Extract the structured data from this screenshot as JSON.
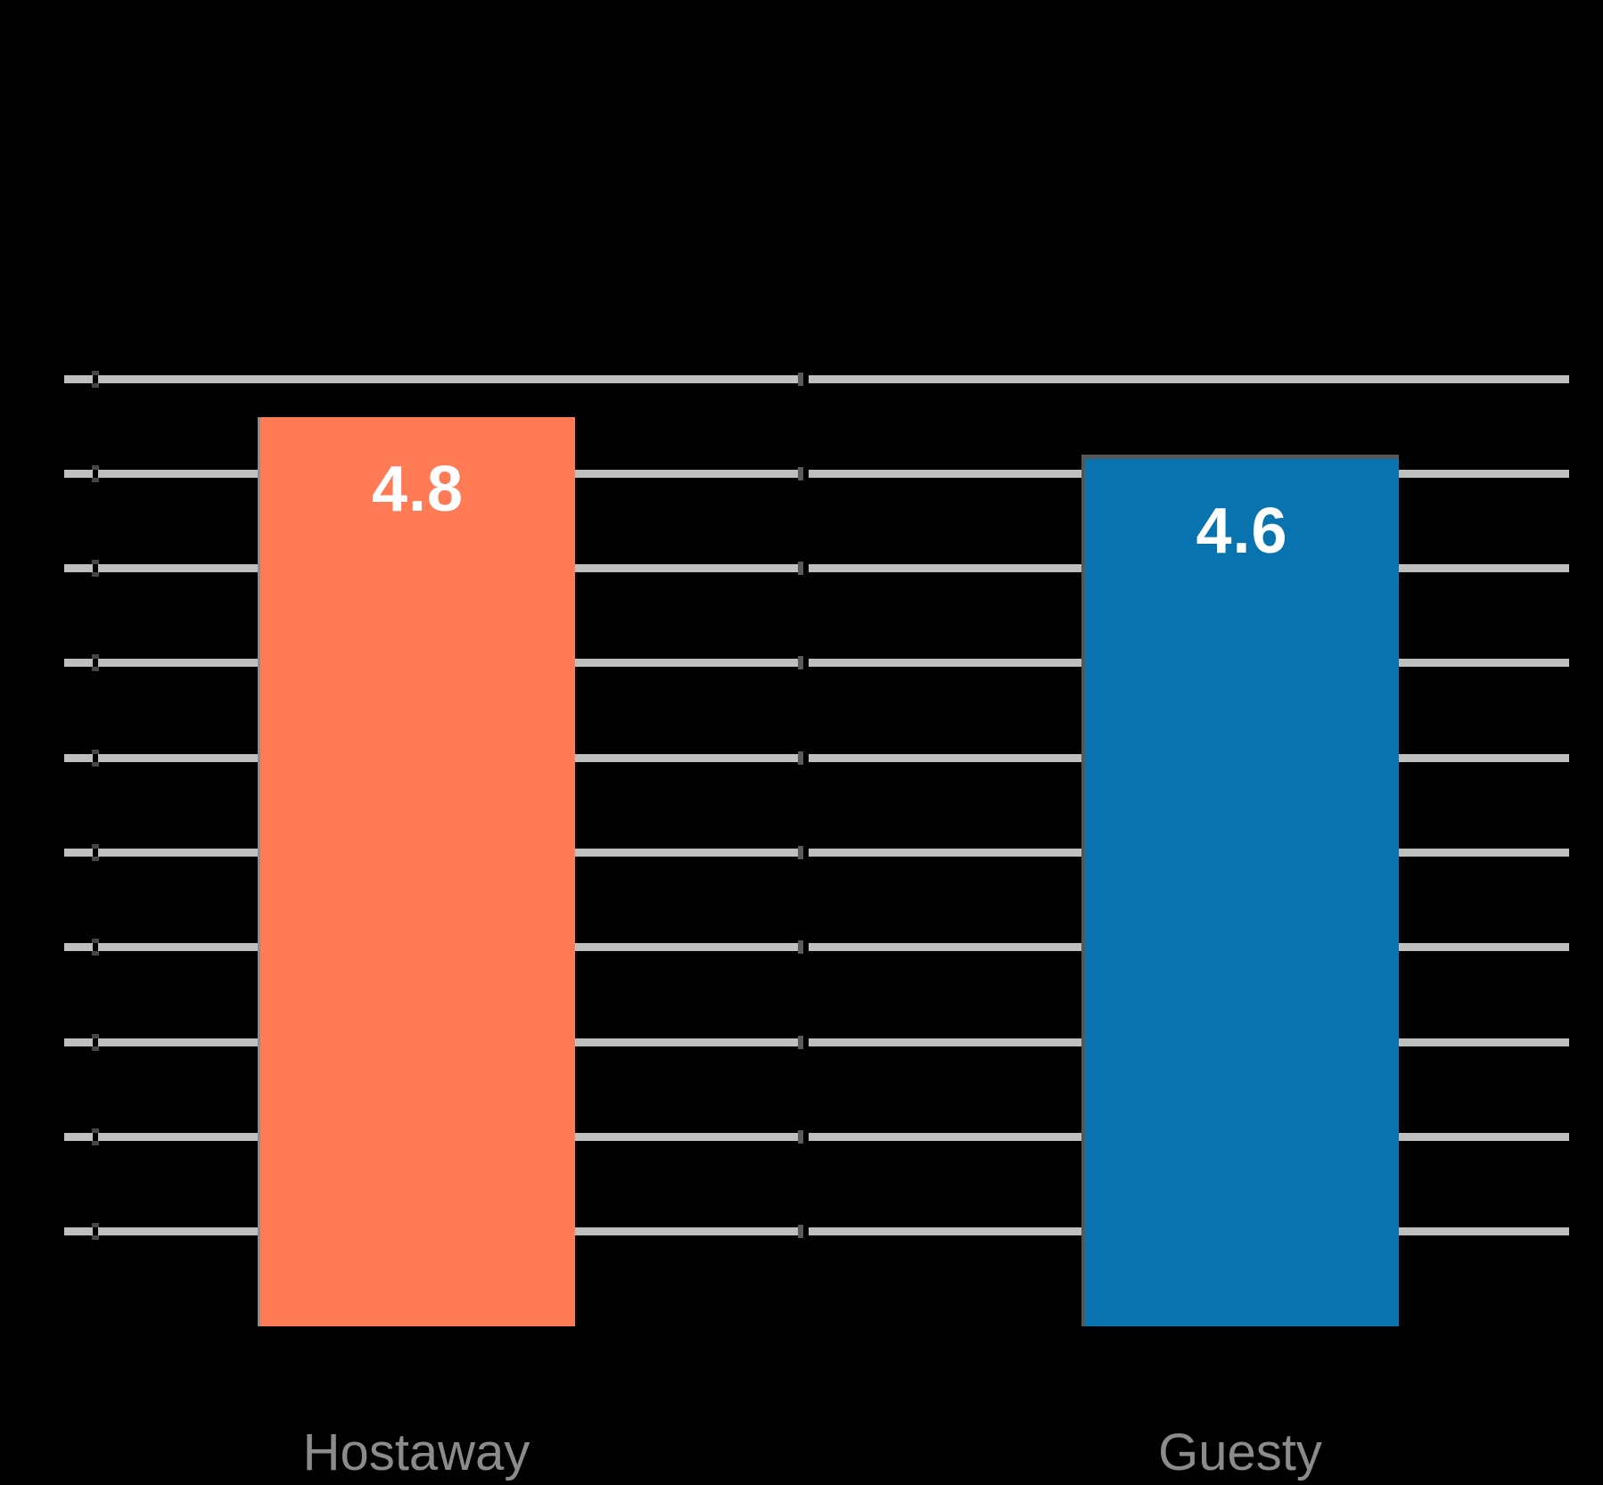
{
  "chart_data": {
    "type": "bar",
    "categories": [
      "Hostaway",
      "Guesty"
    ],
    "values": [
      4.8,
      4.6
    ],
    "value_labels": [
      "4.8",
      "4.6"
    ],
    "bar_colors": [
      "#ff7b55",
      "#0873ae"
    ],
    "bar_border_colors": [
      "#8e8e8e",
      "#54585c"
    ],
    "ylim": [
      0,
      5
    ],
    "gridline_step": 0.5,
    "grid": true,
    "legend": "none",
    "background_color": "#000000",
    "gridline_color": "#bfbfbf",
    "tick_notch_color": "#5a5a5a",
    "value_label_color": "#ffffff",
    "category_label_color": "#8b8b8b"
  }
}
